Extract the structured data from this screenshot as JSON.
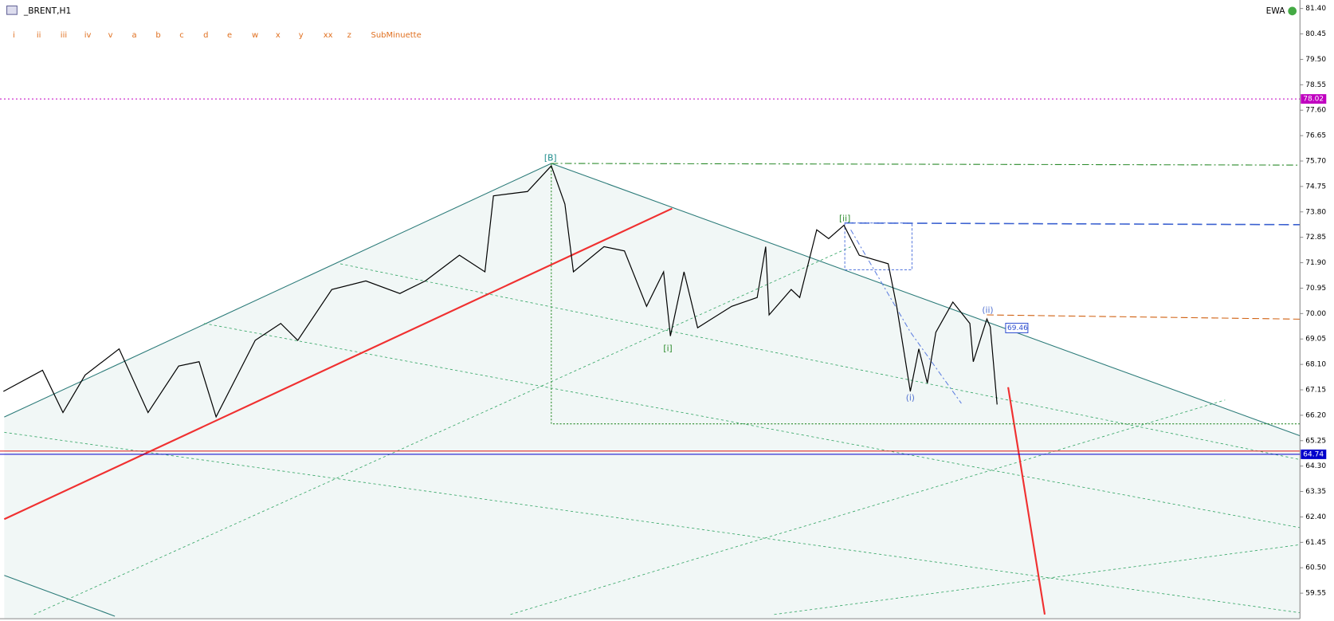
{
  "chart_data": {
    "type": "line",
    "title": "_BRENT,H1",
    "indicator": "EWA",
    "wave_buttons": [
      "i",
      "ii",
      "iii",
      "iv",
      "v",
      "a",
      "b",
      "c",
      "d",
      "e",
      "w",
      "x",
      "y",
      "xx",
      "z",
      "SubMinuette"
    ],
    "wave_labels": [
      "[B]",
      "[ii]",
      "[i]",
      "(i)",
      "(ii)"
    ],
    "color": "#000000",
    "x": [
      2,
      25,
      37,
      50,
      70,
      87,
      105,
      117,
      127,
      150,
      165,
      175,
      195,
      215,
      235,
      250,
      270,
      285,
      290,
      310,
      324,
      332,
      337,
      355,
      367,
      380,
      390,
      394,
      402,
      410,
      430,
      445,
      450,
      452,
      465,
      470,
      480,
      487,
      496,
      505,
      522,
      527,
      535,
      540,
      545,
      550,
      560,
      570,
      572,
      580,
      582,
      586
    ],
    "values": [
      67.09,
      67.88,
      66.3,
      67.7,
      68.68,
      66.3,
      68.04,
      68.2,
      66.14,
      69.0,
      69.63,
      69.0,
      70.9,
      71.22,
      70.75,
      71.22,
      72.18,
      71.56,
      74.4,
      74.56,
      75.52,
      74.09,
      71.56,
      72.5,
      72.34,
      70.27,
      71.56,
      69.16,
      71.56,
      69.47,
      70.27,
      70.6,
      72.5,
      69.95,
      70.9,
      70.6,
      73.13,
      72.8,
      73.3,
      72.18,
      71.86,
      70.27,
      67.09,
      68.68,
      67.4,
      69.3,
      70.43,
      69.63,
      68.2,
      69.8,
      69.5,
      66.6
    ],
    "xlim": [
      0,
      764
    ],
    "ylim": [
      58.6,
      81.718
    ],
    "yticks": [
      {
        "value": 81.4,
        "label": "81.40"
      },
      {
        "value": 80.45,
        "label": "80.45"
      },
      {
        "value": 79.5,
        "label": "79.50"
      },
      {
        "value": 78.55,
        "label": "78.55"
      },
      {
        "value": 77.6,
        "label": "77.60"
      },
      {
        "value": 76.65,
        "label": "76.65"
      },
      {
        "value": 75.7,
        "label": "75.70"
      },
      {
        "value": 74.75,
        "label": "74.75"
      },
      {
        "value": 73.8,
        "label": "73.80"
      },
      {
        "value": 72.85,
        "label": "72.85"
      },
      {
        "value": 71.9,
        "label": "71.90"
      },
      {
        "value": 70.95,
        "label": "70.95"
      },
      {
        "value": 70,
        "label": "70.00"
      },
      {
        "value": 69.05,
        "label": "69.05"
      },
      {
        "value": 68.1,
        "label": "68.10"
      },
      {
        "value": 67.15,
        "label": "67.15"
      },
      {
        "value": 66.2,
        "label": "66.20"
      },
      {
        "value": 65.25,
        "label": "65.25"
      },
      {
        "value": 64.3,
        "label": "64.30"
      },
      {
        "value": 63.35,
        "label": "63.35"
      },
      {
        "value": 62.4,
        "label": "62.40"
      },
      {
        "value": 61.45,
        "label": "61.45"
      },
      {
        "value": 60.5,
        "label": "60.50"
      },
      {
        "value": 59.55,
        "label": "59.55"
      }
    ],
    "levels": [
      {
        "value": 78.02,
        "label": "78.02",
        "color": "#c000c0"
      },
      {
        "value": 64.74,
        "label": "64.74",
        "color": "#0000cc"
      }
    ],
    "price_tag": {
      "value": 69.46,
      "label": "69.46"
    }
  }
}
